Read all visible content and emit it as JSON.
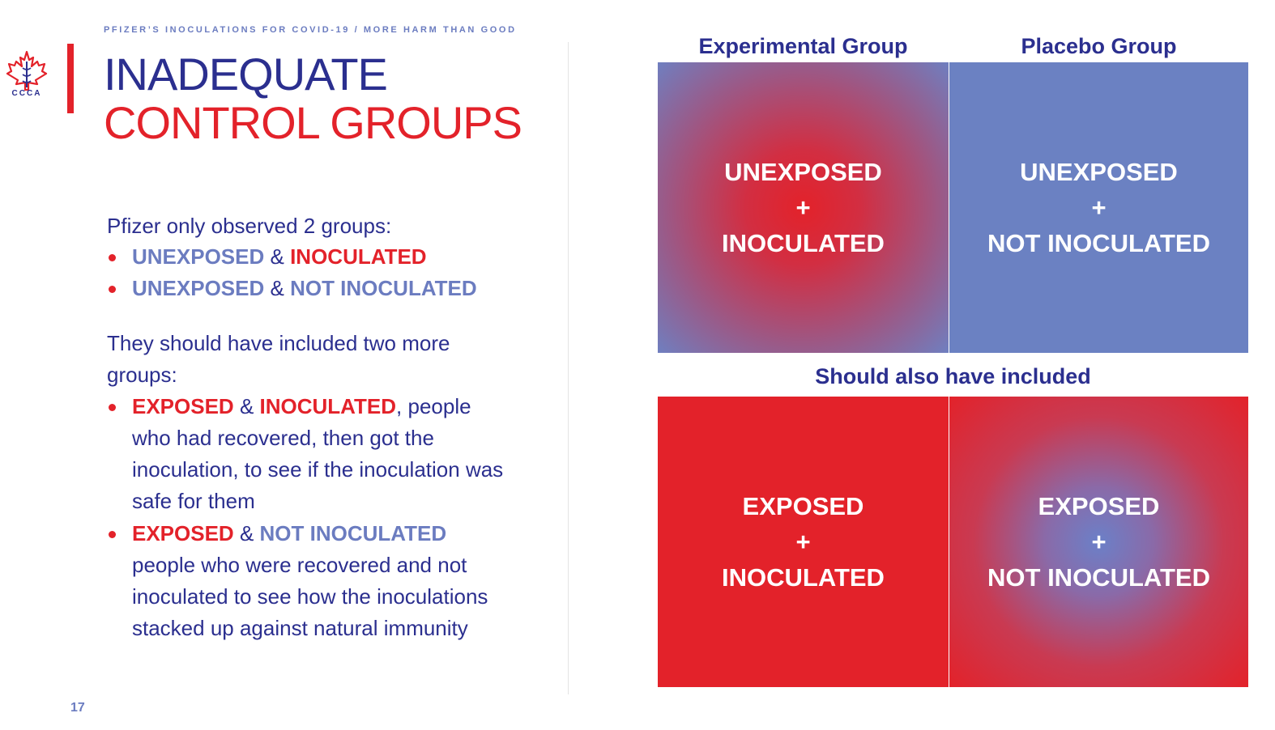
{
  "header": {
    "kicker": "PFIZER’S INOCULATIONS FOR COVID-19 / MORE HARM THAN GOOD",
    "logo_text": "CCCA",
    "title_line1": "INADEQUATE",
    "title_line2": "CONTROL GROUPS"
  },
  "body": {
    "intro1": "Pfizer only observed 2 groups:",
    "bullet1": {
      "a": "UNEXPOSED",
      "amp": " & ",
      "b": "INOCULATED"
    },
    "bullet2": {
      "a": "UNEXPOSED",
      "amp": " & ",
      "b": "NOT INOCULATED"
    },
    "intro2": "They should have included two more groups:",
    "bullet3": {
      "a": "EXPOSED",
      "amp": " & ",
      "b": "INOCULATED",
      "rest": ", people who had recovered, then got the inoculation, to see if the inoculation was safe for them"
    },
    "bullet4": {
      "a": "EXPOSED",
      "amp": " & ",
      "b": "NOT INOCULATED",
      "rest": " people who were recovered and not inoculated to see how the inoculations stacked up against natural immunity"
    }
  },
  "page_number": "17",
  "grid": {
    "col1_header": "Experimental Group",
    "col2_header": "Placebo Group",
    "middle_header": "Should also have included",
    "cells": [
      {
        "line1": "UNEXPOSED",
        "plus": "+",
        "line2": "INOCULATED"
      },
      {
        "line1": "UNEXPOSED",
        "plus": "+",
        "line2": "NOT INOCULATED"
      },
      {
        "line1": "EXPOSED",
        "plus": "+",
        "line2": "INOCULATED"
      },
      {
        "line1": "EXPOSED",
        "plus": "+",
        "line2": "NOT INOCULATED"
      }
    ]
  },
  "colors": {
    "navy": "#2b2f8f",
    "red": "#e3222a",
    "periwinkle": "#6b7cc0"
  }
}
